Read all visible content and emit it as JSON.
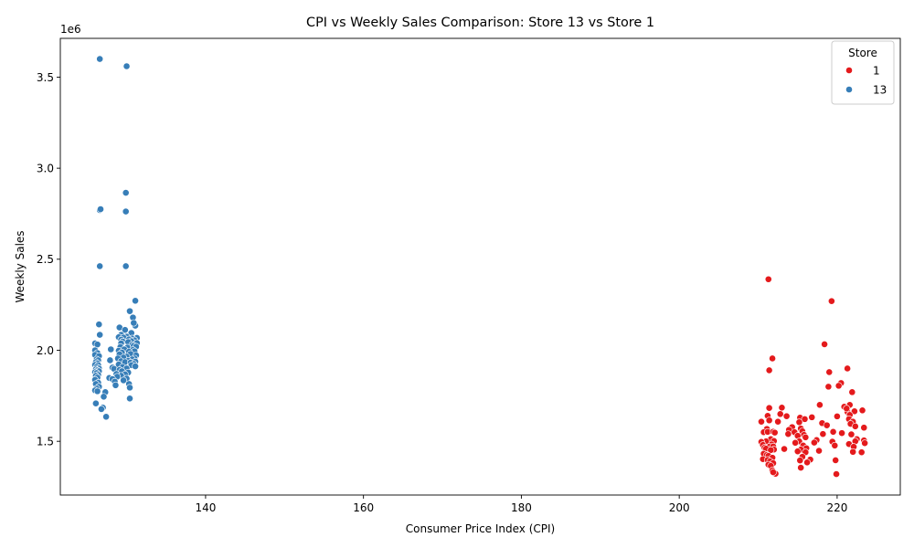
{
  "chart_data": {
    "type": "scatter",
    "title": "CPI vs Weekly Sales Comparison: Store 13 vs Store 1",
    "xlabel": "Consumer Price Index (CPI)",
    "ylabel": "Weekly Sales",
    "y_offset_label": "1e6",
    "xlim": [
      121.6,
      228.0
    ],
    "ylim": [
      1205000,
      3713000
    ],
    "x_ticks": [
      140,
      160,
      180,
      200,
      220
    ],
    "y_ticks": [
      1.5,
      2.0,
      2.5,
      3.0,
      3.5
    ],
    "y_tick_multiplier": 1000000,
    "grid": false,
    "legend": {
      "title": "Store",
      "placement": "top-right"
    },
    "series": [
      {
        "name": "1",
        "color": "#e41a1c",
        "points": [
          [
            211.3,
            2390000
          ],
          [
            219.3,
            2270000
          ],
          [
            218.4,
            2033000
          ],
          [
            211.8,
            1955000
          ],
          [
            221.3,
            1900000
          ],
          [
            211.4,
            1890000
          ],
          [
            219.0,
            1880000
          ],
          [
            220.5,
            1820000
          ],
          [
            220.2,
            1805000
          ],
          [
            218.9,
            1800000
          ],
          [
            221.9,
            1770000
          ],
          [
            217.8,
            1700000
          ],
          [
            221.6,
            1700000
          ],
          [
            220.9,
            1690000
          ],
          [
            211.4,
            1683000
          ],
          [
            213.0,
            1685000
          ],
          [
            223.2,
            1670000
          ],
          [
            222.2,
            1665000
          ],
          [
            221.3,
            1662000
          ],
          [
            221.2,
            1680000
          ],
          [
            212.8,
            1650000
          ],
          [
            216.8,
            1632000
          ],
          [
            213.6,
            1638000
          ],
          [
            215.3,
            1630000
          ],
          [
            220.0,
            1637000
          ],
          [
            211.2,
            1640000
          ],
          [
            221.6,
            1645000
          ],
          [
            215.9,
            1622000
          ],
          [
            221.5,
            1622000
          ],
          [
            222.0,
            1608000
          ],
          [
            210.4,
            1608000
          ],
          [
            212.5,
            1608000
          ],
          [
            211.4,
            1615000
          ],
          [
            215.2,
            1605000
          ],
          [
            218.1,
            1600000
          ],
          [
            221.7,
            1596000
          ],
          [
            218.7,
            1588000
          ],
          [
            222.3,
            1582000
          ],
          [
            214.3,
            1578000
          ],
          [
            223.4,
            1575000
          ],
          [
            211.1,
            1568000
          ],
          [
            215.4,
            1570000
          ],
          [
            213.9,
            1563000
          ],
          [
            215.6,
            1555000
          ],
          [
            210.7,
            1550000
          ],
          [
            211.2,
            1552000
          ],
          [
            211.9,
            1553000
          ],
          [
            212.1,
            1548000
          ],
          [
            214.6,
            1550000
          ],
          [
            219.5,
            1552000
          ],
          [
            220.6,
            1545000
          ],
          [
            218.2,
            1540000
          ],
          [
            221.8,
            1538000
          ],
          [
            215.8,
            1535000
          ],
          [
            215.0,
            1530000
          ],
          [
            213.8,
            1540000
          ],
          [
            216.0,
            1522000
          ],
          [
            222.5,
            1512000
          ],
          [
            211.6,
            1512000
          ],
          [
            217.4,
            1507000
          ],
          [
            223.4,
            1505000
          ],
          [
            215.2,
            1500000
          ],
          [
            211.0,
            1500000
          ],
          [
            212.0,
            1502000
          ],
          [
            222.3,
            1500000
          ],
          [
            219.4,
            1498000
          ],
          [
            210.4,
            1497000
          ],
          [
            217.1,
            1493000
          ],
          [
            221.5,
            1485000
          ],
          [
            214.7,
            1492000
          ],
          [
            223.5,
            1490000
          ],
          [
            211.7,
            1483000
          ],
          [
            210.6,
            1480000
          ],
          [
            219.7,
            1477000
          ],
          [
            215.7,
            1477000
          ],
          [
            211.4,
            1470000
          ],
          [
            211.9,
            1472000
          ],
          [
            222.1,
            1470000
          ],
          [
            210.8,
            1465000
          ],
          [
            216.1,
            1462000
          ],
          [
            215.4,
            1455000
          ],
          [
            213.3,
            1458000
          ],
          [
            211.0,
            1460000
          ],
          [
            212.0,
            1455000
          ],
          [
            211.6,
            1452000
          ],
          [
            217.7,
            1448000
          ],
          [
            222.0,
            1442000
          ],
          [
            223.1,
            1440000
          ],
          [
            215.0,
            1445000
          ],
          [
            210.7,
            1432000
          ],
          [
            211.1,
            1425000
          ],
          [
            216.0,
            1440000
          ],
          [
            211.3,
            1420000
          ],
          [
            215.6,
            1415000
          ],
          [
            211.8,
            1410000
          ],
          [
            210.6,
            1402000
          ],
          [
            211.2,
            1398000
          ],
          [
            216.6,
            1400000
          ],
          [
            219.8,
            1396000
          ],
          [
            211.5,
            1390000
          ],
          [
            215.3,
            1395000
          ],
          [
            216.2,
            1384000
          ],
          [
            211.9,
            1380000
          ],
          [
            211.3,
            1372000
          ],
          [
            211.6,
            1365000
          ],
          [
            215.4,
            1355000
          ],
          [
            211.8,
            1340000
          ],
          [
            212.2,
            1322000
          ],
          [
            219.9,
            1320000
          ],
          [
            211.9,
            1330000
          ]
        ]
      },
      {
        "name": "13",
        "color": "#377eb8",
        "points": [
          [
            126.6,
            3600000
          ],
          [
            130.0,
            3560000
          ],
          [
            129.9,
            2865000
          ],
          [
            126.6,
            2770000
          ],
          [
            126.7,
            2775000
          ],
          [
            129.9,
            2762000
          ],
          [
            126.6,
            2462000
          ],
          [
            129.9,
            2462000
          ],
          [
            131.1,
            2272000
          ],
          [
            130.4,
            2215000
          ],
          [
            130.8,
            2180000
          ],
          [
            126.5,
            2142000
          ],
          [
            131.1,
            2135000
          ],
          [
            129.1,
            2125000
          ],
          [
            130.9,
            2150000
          ],
          [
            129.8,
            2112000
          ],
          [
            130.6,
            2095000
          ],
          [
            126.6,
            2085000
          ],
          [
            129.3,
            2085000
          ],
          [
            130.0,
            2075000
          ],
          [
            129.0,
            2072000
          ],
          [
            129.6,
            2070000
          ],
          [
            131.3,
            2068000
          ],
          [
            130.7,
            2065000
          ],
          [
            130.3,
            2060000
          ],
          [
            129.3,
            2058000
          ],
          [
            131.0,
            2055000
          ],
          [
            130.6,
            2050000
          ],
          [
            129.5,
            2048000
          ],
          [
            130.2,
            2045000
          ],
          [
            131.3,
            2040000
          ],
          [
            126.0,
            2038000
          ],
          [
            126.3,
            2032000
          ],
          [
            129.3,
            2038000
          ],
          [
            130.7,
            2030000
          ],
          [
            130.9,
            2025000
          ],
          [
            131.2,
            2020000
          ],
          [
            129.2,
            2018000
          ],
          [
            130.1,
            2015000
          ],
          [
            128.0,
            2005000
          ],
          [
            126.0,
            2000000
          ],
          [
            129.7,
            2005000
          ],
          [
            130.8,
            2002000
          ],
          [
            129.0,
            1998000
          ],
          [
            131.0,
            1995000
          ],
          [
            130.3,
            1992000
          ],
          [
            129.4,
            1988000
          ],
          [
            126.3,
            1985000
          ],
          [
            126.0,
            1975000
          ],
          [
            129.1,
            1978000
          ],
          [
            130.5,
            1980000
          ],
          [
            131.2,
            1972000
          ],
          [
            126.5,
            1968000
          ],
          [
            130.0,
            1965000
          ],
          [
            129.6,
            1960000
          ],
          [
            131.0,
            1955000
          ],
          [
            126.2,
            1950000
          ],
          [
            128.9,
            1955000
          ],
          [
            130.7,
            1950000
          ],
          [
            126.4,
            1945000
          ],
          [
            127.9,
            1945000
          ],
          [
            130.2,
            1942000
          ],
          [
            129.3,
            1940000
          ],
          [
            131.1,
            1938000
          ],
          [
            126.1,
            1935000
          ],
          [
            129.8,
            1935000
          ],
          [
            130.5,
            1932000
          ],
          [
            126.3,
            1928000
          ],
          [
            130.9,
            1925000
          ],
          [
            126.0,
            1920000
          ],
          [
            126.4,
            1918000
          ],
          [
            129.0,
            1922000
          ],
          [
            130.6,
            1918000
          ],
          [
            131.1,
            1912000
          ],
          [
            126.2,
            1908000
          ],
          [
            128.2,
            1905000
          ],
          [
            129.5,
            1908000
          ],
          [
            126.5,
            1900000
          ],
          [
            128.4,
            1898000
          ],
          [
            130.0,
            1900000
          ],
          [
            126.1,
            1895000
          ],
          [
            126.3,
            1890000
          ],
          [
            129.1,
            1892000
          ],
          [
            126.5,
            1885000
          ],
          [
            129.4,
            1885000
          ],
          [
            126.0,
            1880000
          ],
          [
            130.2,
            1878000
          ],
          [
            126.2,
            1875000
          ],
          [
            128.7,
            1870000
          ],
          [
            126.4,
            1865000
          ],
          [
            129.8,
            1868000
          ],
          [
            126.1,
            1860000
          ],
          [
            129.3,
            1860000
          ],
          [
            128.8,
            1855000
          ],
          [
            126.3,
            1850000
          ],
          [
            127.8,
            1848000
          ],
          [
            130.0,
            1845000
          ],
          [
            128.2,
            1842000
          ],
          [
            126.0,
            1838000
          ],
          [
            129.6,
            1835000
          ],
          [
            128.5,
            1828000
          ],
          [
            126.4,
            1822000
          ],
          [
            126.1,
            1815000
          ],
          [
            130.3,
            1815000
          ],
          [
            128.6,
            1808000
          ],
          [
            126.5,
            1800000
          ],
          [
            130.4,
            1795000
          ],
          [
            126.2,
            1790000
          ],
          [
            126.0,
            1780000
          ],
          [
            126.3,
            1775000
          ],
          [
            127.3,
            1770000
          ],
          [
            127.1,
            1745000
          ],
          [
            130.4,
            1735000
          ],
          [
            126.1,
            1708000
          ],
          [
            127.0,
            1685000
          ],
          [
            126.8,
            1677000
          ],
          [
            127.4,
            1635000
          ]
        ]
      }
    ]
  }
}
